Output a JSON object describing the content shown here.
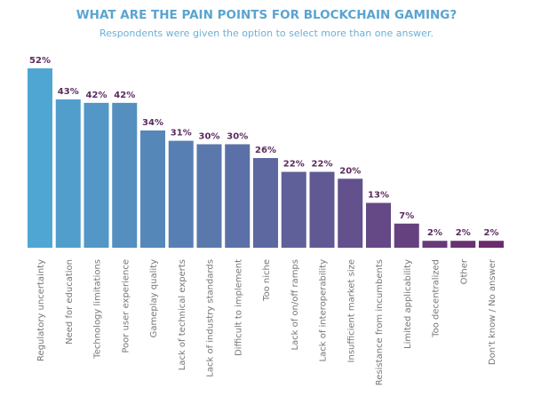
{
  "chart_data": {
    "type": "bar",
    "title": "WHAT ARE THE PAIN POINTS FOR BLOCKCHAIN GAMING?",
    "subtitle": "Respondents were given the option to select more than one answer.",
    "xlabel": "",
    "ylabel": "",
    "ylim": [
      0,
      52
    ],
    "grid": false,
    "value_suffix": "%",
    "categories": [
      "Regulatory uncertainty",
      "Need for education",
      "Technology limitations",
      "Poor user experience",
      "Gameplay quality",
      "Lack of technical experts",
      "Lack of industry standards",
      "Difficult to implement",
      "Too niche",
      "Lack of on/off ramps",
      "Lack of interoperability",
      "Insufficient market size",
      "Resistance from incumbents",
      "Limited applicability",
      "Too decentralized",
      "Other",
      "Don't know / No answer"
    ],
    "values": [
      52,
      43,
      42,
      42,
      34,
      31,
      30,
      30,
      26,
      22,
      22,
      20,
      13,
      7,
      2,
      2,
      2
    ],
    "colors": {
      "start": "#4fa6d3",
      "end": "#6b2a6c",
      "value_label": "#5b2b5e",
      "title": "#5aa4d0"
    }
  }
}
